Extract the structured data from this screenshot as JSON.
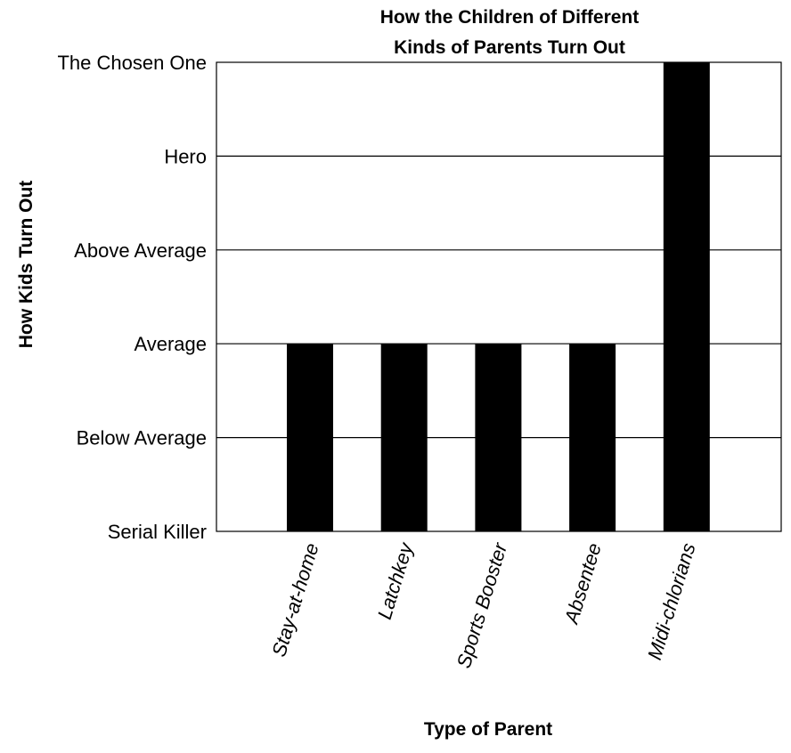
{
  "chart_data": {
    "type": "bar",
    "title": [
      "How the Children of Different",
      "Kinds of Parents Turn Out"
    ],
    "xlabel": "Type of Parent",
    "ylabel": "How Kids Turn Out",
    "categories": [
      "Stay-at-home",
      "Latchkey",
      "Sports Booster",
      "Absentee",
      "Midi-chlorians"
    ],
    "y_levels": [
      "Serial Killer",
      "Below Average",
      "Average",
      "Above Average",
      "Hero",
      "The Chosen One"
    ],
    "values": [
      "Average",
      "Average",
      "Average",
      "Average",
      "The Chosen One"
    ],
    "ylim": [
      "Serial Killer",
      "The Chosen One"
    ],
    "grid": true,
    "legend": "none",
    "bar_color": "#000000"
  }
}
